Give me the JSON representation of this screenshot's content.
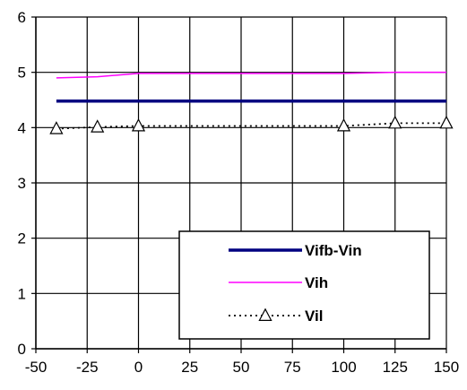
{
  "chart_data": {
    "type": "line",
    "title": "",
    "xlabel": "",
    "ylabel": "",
    "xlim": [
      -50,
      150
    ],
    "ylim": [
      0,
      6
    ],
    "x_ticks": [
      -50,
      -25,
      0,
      25,
      50,
      75,
      100,
      125,
      150
    ],
    "y_ticks": [
      0,
      1,
      2,
      3,
      4,
      5,
      6
    ],
    "grid": true,
    "legend_position": "lower-right",
    "series": [
      {
        "name": "Vifb-Vin",
        "color": "#000080",
        "style": "solid-thick",
        "marker": "none",
        "x": [
          -40,
          150
        ],
        "y": [
          4.48,
          4.48
        ]
      },
      {
        "name": "Vih",
        "color": "#ff00ff",
        "style": "solid-thin",
        "marker": "none",
        "x": [
          -40,
          -20,
          0,
          100,
          125,
          150
        ],
        "y": [
          4.9,
          4.92,
          4.98,
          4.98,
          5.0,
          5.0
        ]
      },
      {
        "name": "Vil",
        "color": "#000000",
        "style": "dotted",
        "marker": "triangle",
        "x": [
          -40,
          -20,
          0,
          100,
          125,
          150
        ],
        "y": [
          3.98,
          4.01,
          4.03,
          4.03,
          4.08,
          4.08
        ]
      }
    ]
  }
}
